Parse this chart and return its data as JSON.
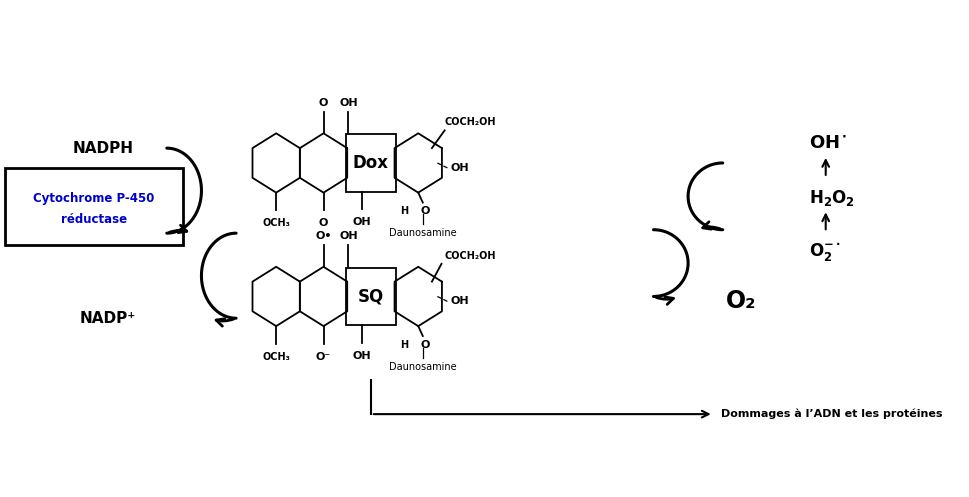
{
  "bg_color": "#ffffff",
  "nadph_text": "NADPH",
  "nadp_text": "NADP⁺",
  "cytochrome_line1": "Cytochrome P-450",
  "cytochrome_line2": "réductase",
  "dox_label": "Dox",
  "sq_label": "SQ",
  "o2_label": "O₂",
  "daunosamine": "Daunosamine",
  "coch2oh": "COCH₂OH",
  "och3": "OCH₃",
  "damage_text": "Dommages à l’ADN et les protéines",
  "fig_width": 9.7,
  "fig_height": 4.97,
  "dpi": 100
}
